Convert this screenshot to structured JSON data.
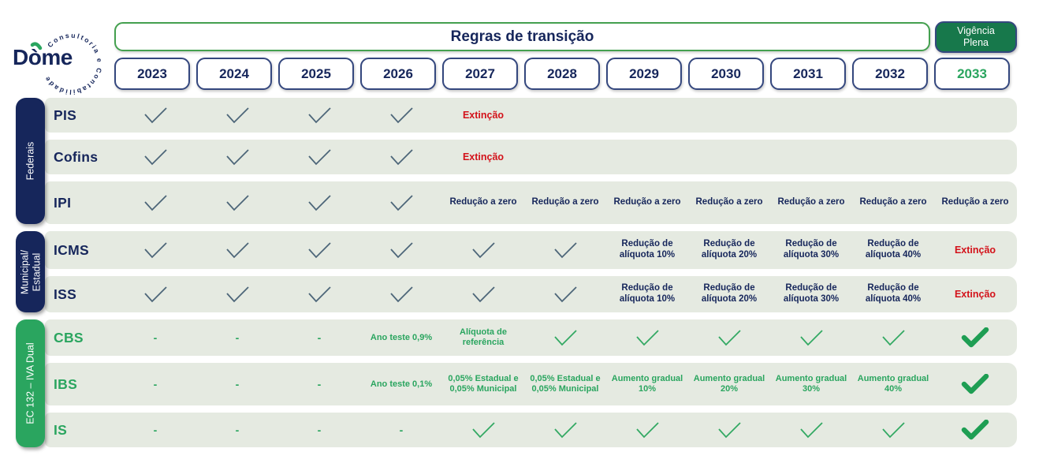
{
  "logo": {
    "brand": "Dòme",
    "tagline": "Consultoria e Contabilidade"
  },
  "header": {
    "title": "Regras de transição",
    "full_effect_label": "Vigência Plena"
  },
  "years": [
    "2023",
    "2024",
    "2025",
    "2026",
    "2027",
    "2028",
    "2029",
    "2030",
    "2031",
    "2032",
    "2033"
  ],
  "colors": {
    "navy": "#16265b",
    "slate_check": "#4d6679",
    "green": "#2aa55f",
    "green_check": "#33a963",
    "green_check_bold": "#1e9e53",
    "dark_green_box": "#17784b",
    "red": "#d3121a",
    "row_background": "#e5eae1",
    "green_border": "#44a04f"
  },
  "table": {
    "groups": [
      {
        "label": "Federais",
        "bar_color": "#16265b",
        "tax_color": "#16265b",
        "rows": [
          {
            "tax": "PIS",
            "cells": [
              {
                "type": "check",
                "color": "navy"
              },
              {
                "type": "check",
                "color": "navy"
              },
              {
                "type": "check",
                "color": "navy"
              },
              {
                "type": "check",
                "color": "navy"
              },
              {
                "type": "text",
                "color": "red",
                "text": "Extinção"
              },
              {
                "type": "empty"
              },
              {
                "type": "empty"
              },
              {
                "type": "empty"
              },
              {
                "type": "empty"
              },
              {
                "type": "empty"
              },
              {
                "type": "empty"
              }
            ]
          },
          {
            "tax": "Cofins",
            "cells": [
              {
                "type": "check",
                "color": "navy"
              },
              {
                "type": "check",
                "color": "navy"
              },
              {
                "type": "check",
                "color": "navy"
              },
              {
                "type": "check",
                "color": "navy"
              },
              {
                "type": "text",
                "color": "red",
                "text": "Extinção"
              },
              {
                "type": "empty"
              },
              {
                "type": "empty"
              },
              {
                "type": "empty"
              },
              {
                "type": "empty"
              },
              {
                "type": "empty"
              },
              {
                "type": "empty"
              }
            ]
          },
          {
            "tax": "IPI",
            "cells": [
              {
                "type": "check",
                "color": "navy"
              },
              {
                "type": "check",
                "color": "navy"
              },
              {
                "type": "check",
                "color": "navy"
              },
              {
                "type": "check",
                "color": "navy"
              },
              {
                "type": "text",
                "color": "navy",
                "text": "Redução a zero"
              },
              {
                "type": "text",
                "color": "navy",
                "text": "Redução a zero"
              },
              {
                "type": "text",
                "color": "navy",
                "text": "Redução a zero"
              },
              {
                "type": "text",
                "color": "navy",
                "text": "Redução a zero"
              },
              {
                "type": "text",
                "color": "navy",
                "text": "Redução a zero"
              },
              {
                "type": "text",
                "color": "navy",
                "text": "Redução a zero"
              },
              {
                "type": "text",
                "color": "navy",
                "text": "Redução a zero"
              }
            ]
          }
        ]
      },
      {
        "label": "Municipal/ Estadual",
        "bar_color": "#16265b",
        "tax_color": "#16265b",
        "rows": [
          {
            "tax": "ICMS",
            "cells": [
              {
                "type": "check",
                "color": "navy"
              },
              {
                "type": "check",
                "color": "navy"
              },
              {
                "type": "check",
                "color": "navy"
              },
              {
                "type": "check",
                "color": "navy"
              },
              {
                "type": "check",
                "color": "navy"
              },
              {
                "type": "check",
                "color": "navy"
              },
              {
                "type": "text",
                "color": "navy",
                "text": "Redução de alíquota 10%"
              },
              {
                "type": "text",
                "color": "navy",
                "text": "Redução de alíquota 20%"
              },
              {
                "type": "text",
                "color": "navy",
                "text": "Redução de alíquota 30%"
              },
              {
                "type": "text",
                "color": "navy",
                "text": "Redução de alíquota 40%"
              },
              {
                "type": "text",
                "color": "red",
                "text": "Extinção"
              }
            ]
          },
          {
            "tax": "ISS",
            "cells": [
              {
                "type": "check",
                "color": "navy"
              },
              {
                "type": "check",
                "color": "navy"
              },
              {
                "type": "check",
                "color": "navy"
              },
              {
                "type": "check",
                "color": "navy"
              },
              {
                "type": "check",
                "color": "navy"
              },
              {
                "type": "check",
                "color": "navy"
              },
              {
                "type": "text",
                "color": "navy",
                "text": "Redução de alíquota 10%"
              },
              {
                "type": "text",
                "color": "navy",
                "text": "Redução de alíquota 20%"
              },
              {
                "type": "text",
                "color": "navy",
                "text": "Redução de alíquota 30%"
              },
              {
                "type": "text",
                "color": "navy",
                "text": "Redução de alíquota 40%"
              },
              {
                "type": "text",
                "color": "red",
                "text": "Extinção"
              }
            ]
          }
        ]
      },
      {
        "label": "EC 132  –  IVA Dual",
        "bar_color": "#2aa55f",
        "tax_color": "#2aa55f",
        "rows": [
          {
            "tax": "CBS",
            "cells": [
              {
                "type": "dash"
              },
              {
                "type": "dash"
              },
              {
                "type": "dash"
              },
              {
                "type": "text",
                "color": "green",
                "text": "Ano teste 0,9%"
              },
              {
                "type": "text",
                "color": "green",
                "text": "Alíquota de referência"
              },
              {
                "type": "check",
                "color": "green"
              },
              {
                "type": "check",
                "color": "green"
              },
              {
                "type": "check",
                "color": "green"
              },
              {
                "type": "check",
                "color": "green"
              },
              {
                "type": "check",
                "color": "green"
              },
              {
                "type": "check-bold"
              }
            ]
          },
          {
            "tax": "IBS",
            "cells": [
              {
                "type": "dash"
              },
              {
                "type": "dash"
              },
              {
                "type": "dash"
              },
              {
                "type": "text",
                "color": "green",
                "text": "Ano teste 0,1%"
              },
              {
                "type": "text",
                "color": "green",
                "text": "0,05% Estadual e 0,05% Municipal"
              },
              {
                "type": "text",
                "color": "green",
                "text": "0,05% Estadual e 0,05% Municipal"
              },
              {
                "type": "text",
                "color": "green",
                "text": "Aumento gradual 10%"
              },
              {
                "type": "text",
                "color": "green",
                "text": "Aumento gradual 20%"
              },
              {
                "type": "text",
                "color": "green",
                "text": "Aumento gradual 30%"
              },
              {
                "type": "text",
                "color": "green",
                "text": "Aumento gradual 40%"
              },
              {
                "type": "check-bold"
              }
            ]
          },
          {
            "tax": "IS",
            "cells": [
              {
                "type": "dash"
              },
              {
                "type": "dash"
              },
              {
                "type": "dash"
              },
              {
                "type": "dash"
              },
              {
                "type": "check",
                "color": "green"
              },
              {
                "type": "check",
                "color": "green"
              },
              {
                "type": "check",
                "color": "green"
              },
              {
                "type": "check",
                "color": "green"
              },
              {
                "type": "check",
                "color": "green"
              },
              {
                "type": "check",
                "color": "green"
              },
              {
                "type": "check-bold"
              }
            ]
          }
        ]
      }
    ]
  }
}
